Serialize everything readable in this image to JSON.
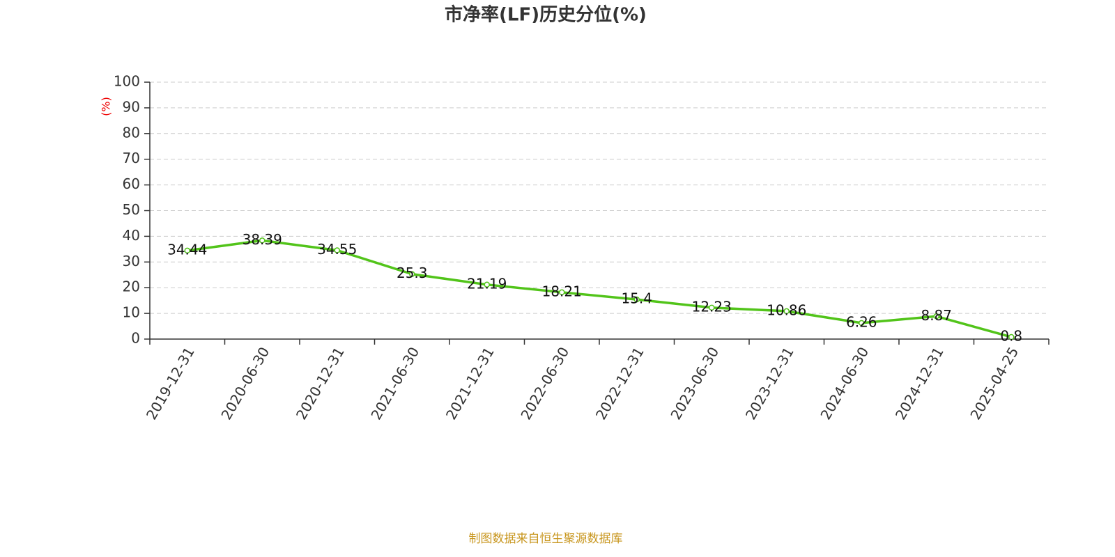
{
  "chart_data": {
    "type": "line",
    "title": "市净率(LF)历史分位(%)",
    "y_label": "(%)",
    "source": "制图数据来自恒生聚源数据库",
    "categories": [
      "2019-12-31",
      "2020-06-30",
      "2020-12-31",
      "2021-06-30",
      "2021-12-31",
      "2022-06-30",
      "2022-12-31",
      "2023-06-30",
      "2023-12-31",
      "2024-06-30",
      "2024-12-31",
      "2025-04-25"
    ],
    "values": [
      34.44,
      38.39,
      34.55,
      25.3,
      21.19,
      18.21,
      15.4,
      12.23,
      10.86,
      6.26,
      8.87,
      0.8
    ],
    "color": "#52c41a",
    "ylim": [
      0,
      100
    ],
    "yticks": [
      0,
      10,
      20,
      30,
      40,
      50,
      60,
      70,
      80,
      90,
      100
    ],
    "grid": true
  }
}
